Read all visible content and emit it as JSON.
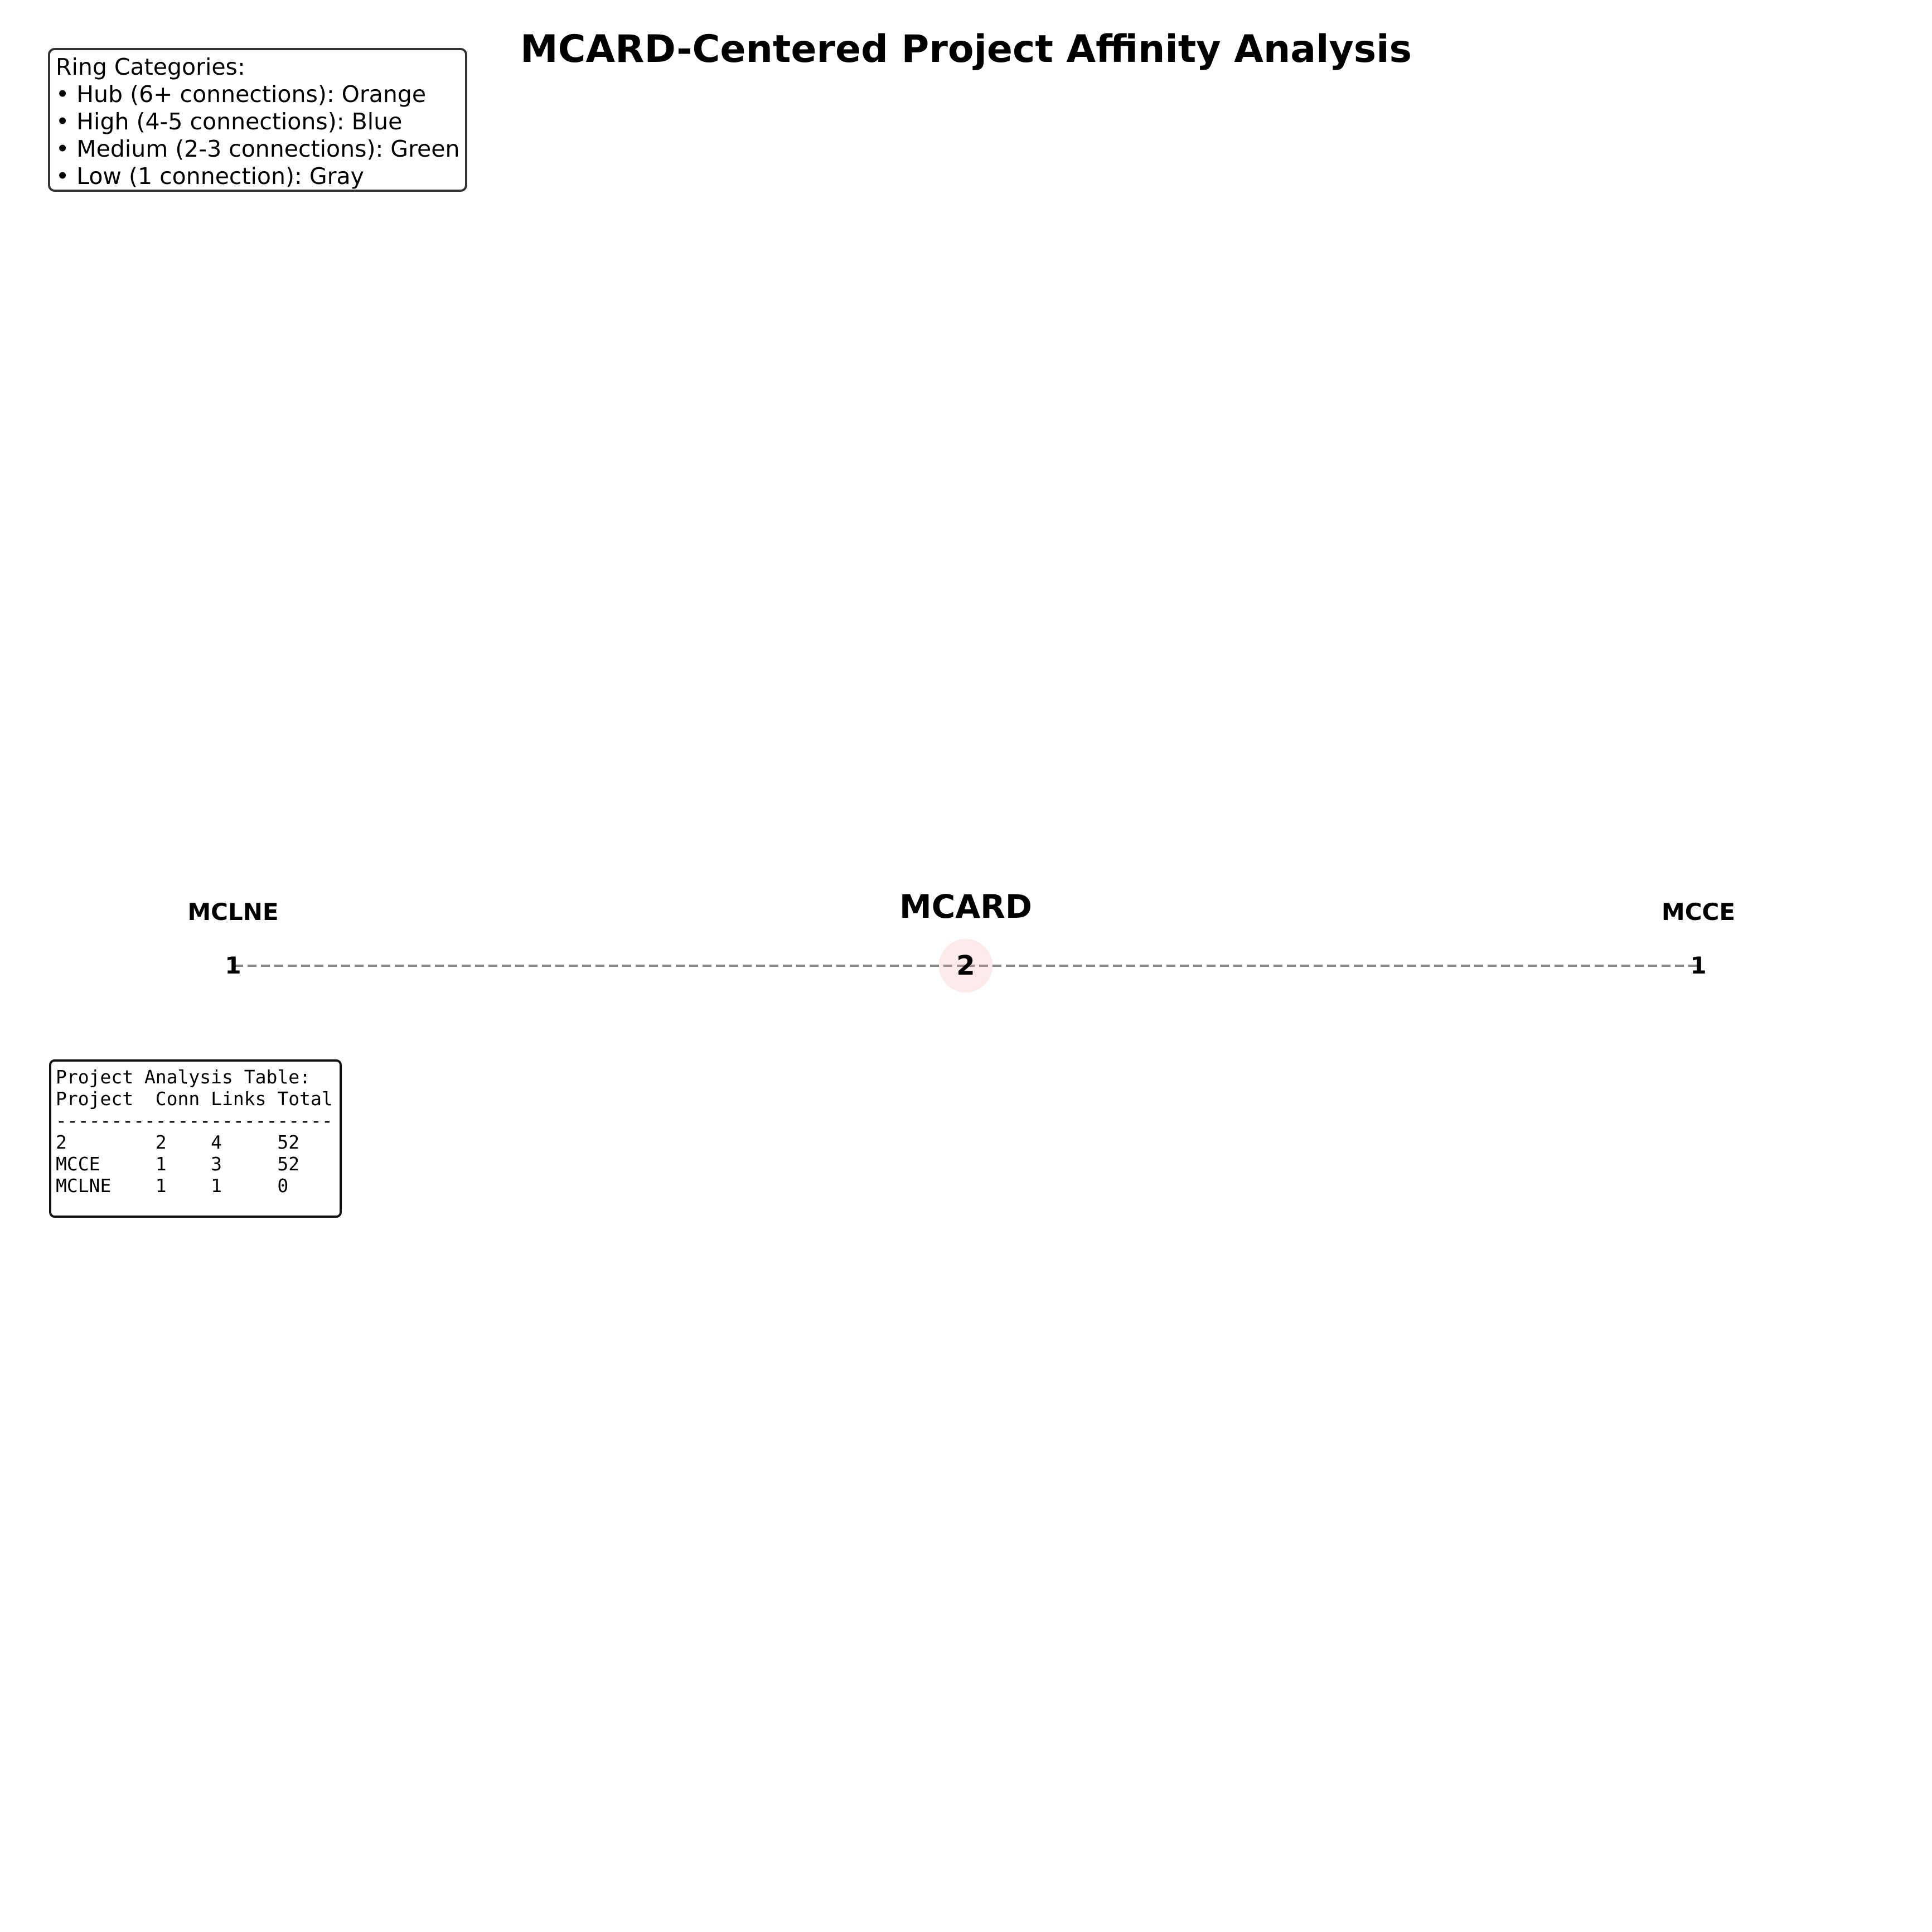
{
  "header": {
    "title": "MCARD-Centered Project Affinity Analysis"
  },
  "legend": {
    "heading": "Ring Categories:",
    "items": [
      "• Hub (6+ connections): Orange",
      "• High (4-5 connections): Blue",
      "• Medium (2-3 connections): Green",
      "• Low (1 connection): Gray"
    ]
  },
  "network": {
    "center": {
      "name": "MCARD",
      "value": "2",
      "color": "#f4a3a3"
    },
    "nodes": [
      {
        "name": "MCLNE",
        "value": "1"
      },
      {
        "name": "MCCE",
        "value": "1"
      }
    ],
    "edge_color": "#888888"
  },
  "table": {
    "heading": "Project Analysis Table:",
    "columns": [
      "Project",
      "Conn",
      "Links",
      "Total"
    ],
    "separator": "-------------------------",
    "rows": [
      [
        "2",
        "2",
        "4",
        "52"
      ],
      [
        "MCCE",
        "1",
        "3",
        "52"
      ],
      [
        "MCLNE",
        "1",
        "1",
        "0"
      ]
    ]
  }
}
